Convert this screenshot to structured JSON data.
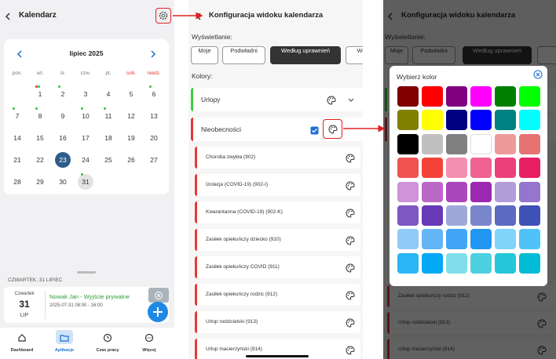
{
  "calendar_screen": {
    "title": "Kalendarz",
    "month": "lipiec 2025",
    "weekdays": [
      "pon.",
      "wt.",
      "śr.",
      "czw.",
      "pt.",
      "sob.",
      "niedz."
    ],
    "weeks": [
      [
        null,
        1,
        2,
        3,
        4,
        5,
        6
      ],
      [
        7,
        8,
        9,
        10,
        11,
        12,
        13
      ],
      [
        14,
        15,
        16,
        17,
        18,
        19,
        20
      ],
      [
        21,
        22,
        23,
        24,
        25,
        26,
        27
      ],
      [
        28,
        29,
        30,
        31
      ]
    ],
    "selected_day_header": "CZWARTEK, 31 LIPIEC",
    "event": {
      "day_name": "Czwartek",
      "day": "31",
      "month": "LIP",
      "title": "Nowak Jan - Wyjście prywatne",
      "time": "2025-07-31 08:00 - 16:00"
    },
    "nav": [
      "Dashboard",
      "Aplikacje",
      "Czas pracy",
      "Więcej"
    ]
  },
  "config_screen": {
    "title": "Konfiguracja widoku kalendarza",
    "display_label": "Wyświetlanie:",
    "tabs": [
      "Moje",
      "Podwładni",
      "Według uprawnień",
      "We"
    ],
    "colors_label": "Kolory:",
    "groups": [
      "Urlopy",
      "Nieobecności"
    ],
    "items": [
      "Choroba zwykła (902)",
      "Izolacja (COVID-19) (902-I)",
      "Kwarantanna (COVID-19) (902-K)",
      "Zasiłek opiekuńczy dziecko (910)",
      "Zasiłek opiekuńczy COVID (911)",
      "Zasiłek opiekuńczy rodzic (912)",
      "Urlop rodzicielski (913)",
      "Urlop macierzyński (914)"
    ]
  },
  "picker_screen": {
    "title": "Konfiguracja widoku kalendarza",
    "display_label": "Wyświetlanie:",
    "tabs": [
      "Moje",
      "Podwładni",
      "Według uprawnień"
    ],
    "background_items": [
      "Zasiłek opiekuńczy rodzic (912)",
      "Urlop rodzicielski (913)",
      "Urlop macierzyński (914)"
    ],
    "dialog": {
      "title": "Wybierz kolor",
      "colors": [
        [
          "#800000",
          "#ff0000",
          "#800080",
          "#ff00ff",
          "#008000",
          "#00ff00"
        ],
        [
          "#808000",
          "#ffff00",
          "#000080",
          "#0000ff",
          "#008080",
          "#00ffff"
        ],
        [
          "#000000",
          "#c0c0c0",
          "#808080",
          "#ffffff",
          "#ef9a9a",
          "#e57373"
        ],
        [
          "#ef5350",
          "#f44336",
          "#f48fb1",
          "#f06292",
          "#ec407a",
          "#e91e63"
        ],
        [
          "#ce93d8",
          "#ba68c8",
          "#ab47bc",
          "#9c27b0",
          "#b39ddb",
          "#9575cd"
        ],
        [
          "#7e57c2",
          "#673ab7",
          "#9fa8da",
          "#7986cb",
          "#5c6bc0",
          "#3f51b5"
        ],
        [
          "#90caf9",
          "#64b5f6",
          "#42a5f5",
          "#2196f3",
          "#81d4fa",
          "#4fc3f7"
        ],
        [
          "#29b6f6",
          "#03a9f4",
          "#80deea",
          "#4dd0e1",
          "#26c6da",
          "#00bcd4"
        ]
      ]
    }
  }
}
